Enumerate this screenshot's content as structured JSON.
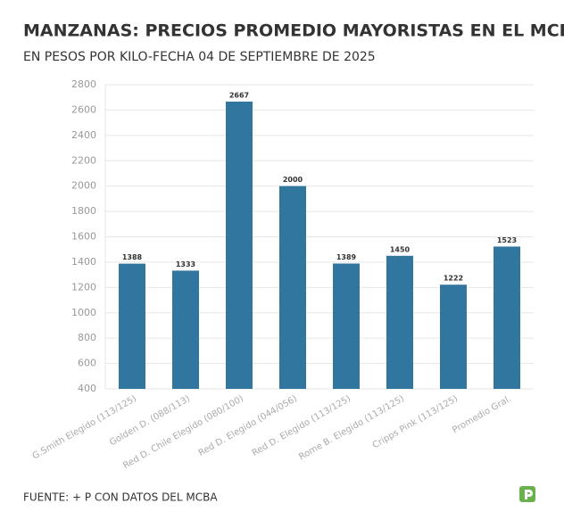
{
  "chart_data": {
    "type": "bar",
    "title": "MANZANAS: PRECIOS PROMEDIO MAYORISTAS EN EL MCBA",
    "subtitle": "EN PESOS POR KILO-FECHA 04 DE SEPTIEMBRE DE 2025",
    "source": "FUENTE: + P CON DATOS DEL MCBA",
    "categories": [
      "G.Smith Elegido (113/125)",
      "Golden D. (088/113)",
      "Red D. Chile Elegido (080/100)",
      "Red D. Elegido (044/056)",
      "Red D. Elegido (113/125)",
      "Rome B. Elegido (113/125)",
      "Cripps Pink (113/125)",
      "Promedio Gral."
    ],
    "values": [
      1388,
      1333,
      2667,
      2000,
      1389,
      1450,
      1222,
      1523
    ],
    "color": "#31769f",
    "ylim": [
      400,
      2800
    ],
    "yticks": [
      400,
      600,
      800,
      1000,
      1200,
      1400,
      1600,
      1800,
      2000,
      2200,
      2400,
      2600,
      2800
    ],
    "grid": true
  }
}
